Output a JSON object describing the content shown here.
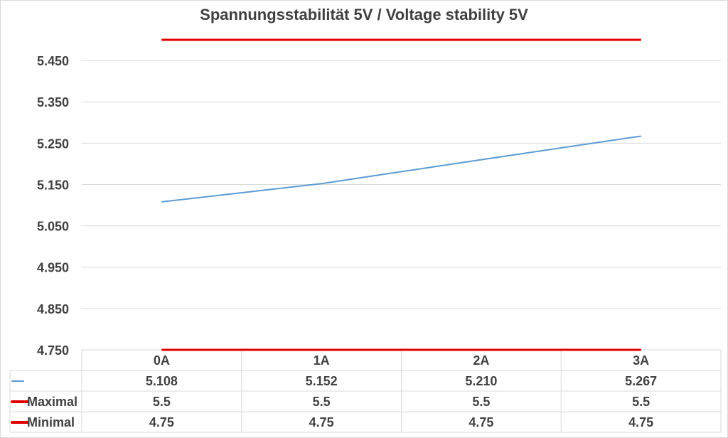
{
  "chart_data": {
    "type": "line",
    "title": "Spannungsstabilität 5V / Voltage stability 5V",
    "categories": [
      "0A",
      "1A",
      "2A",
      "3A"
    ],
    "series": [
      {
        "name": "",
        "values": [
          5.108,
          5.152,
          5.21,
          5.267
        ],
        "labels": [
          "5.108",
          "5.152",
          "5.210",
          "5.267"
        ],
        "color": "#5b9bd5"
      },
      {
        "name": "Maximal",
        "values": [
          5.5,
          5.5,
          5.5,
          5.5
        ],
        "labels": [
          "5.5",
          "5.5",
          "5.5",
          "5.5"
        ],
        "color": "#e00000"
      },
      {
        "name": "Minimal",
        "values": [
          4.75,
          4.75,
          4.75,
          4.75
        ],
        "labels": [
          "4.75",
          "4.75",
          "4.75",
          "4.75"
        ],
        "color": "#e00000"
      }
    ],
    "yticks": [
      "4.750",
      "4.850",
      "4.950",
      "5.050",
      "5.150",
      "5.250",
      "5.350",
      "5.450"
    ],
    "ylim": [
      4.75,
      5.5
    ],
    "grid": true,
    "data_table": true
  }
}
